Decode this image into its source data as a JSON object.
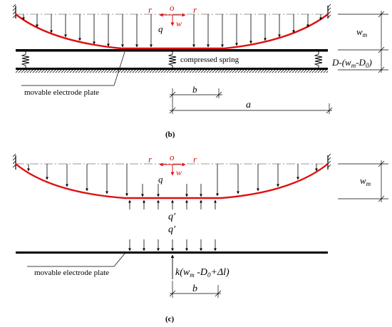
{
  "panel_b": {
    "caption": "(b)",
    "origin": "o",
    "r_left": "r",
    "r_right": "r",
    "w": "w",
    "q": "q",
    "spring_label": "compressed spring",
    "plate_label": "movable electrode plate",
    "wm_letter": "w",
    "wm_sub": "m",
    "gap_D": "D-(w",
    "gap_m": "m",
    "gap_D0": "-D",
    "gap_0": "0",
    "gap_close": ")",
    "dim_b": "b",
    "dim_a": "a"
  },
  "panel_c": {
    "caption": "(c)",
    "origin": "o",
    "r_left": "r",
    "r_right": "r",
    "w": "w",
    "q": "q",
    "q_prime_1": "q′",
    "q_prime_2": "q′",
    "plate_label": "movable electrode plate",
    "wm_letter": "w",
    "wm_sub": "m",
    "force_k": "k(w",
    "force_m": "m",
    "force_D0": " -D",
    "force_0": "0",
    "force_rest": "+Δl)",
    "dim_b": "b"
  },
  "colors": {
    "membrane": "#e01010",
    "annotation": "#e01010",
    "line": "#000000"
  }
}
